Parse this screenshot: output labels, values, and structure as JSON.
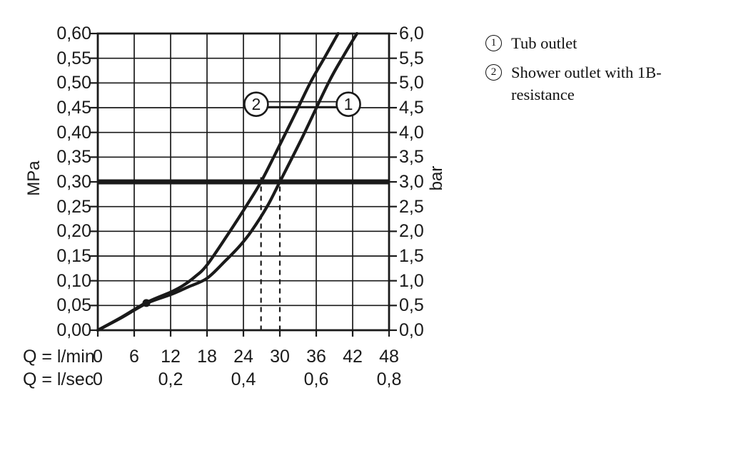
{
  "colors": {
    "ink": "#1a1a1a",
    "background": "#ffffff"
  },
  "chart_data": {
    "type": "line",
    "grid": true,
    "x_axis": {
      "xlim": [
        0,
        48
      ],
      "gridline_step_lmin": 6,
      "row_lmin": {
        "label": "Q = l/min",
        "ticks": [
          "0",
          "6",
          "12",
          "18",
          "24",
          "30",
          "36",
          "42",
          "48"
        ],
        "values": [
          0,
          6,
          12,
          18,
          24,
          30,
          36,
          42,
          48
        ]
      },
      "row_lsec": {
        "label": "Q = l/sec",
        "ticks": [
          "0",
          "0,2",
          "0,4",
          "0,6",
          "0,8"
        ],
        "positions_lmin": [
          0,
          12,
          24,
          36,
          48
        ]
      }
    },
    "y_axis_left": {
      "label": "MPa",
      "ylim": [
        0,
        0.6
      ],
      "step": 0.05,
      "ticks": [
        "0,60",
        "0,55",
        "0,50",
        "0,45",
        "0,40",
        "0,35",
        "0,30",
        "0,25",
        "0,20",
        "0,15",
        "0,10",
        "0,05",
        "0,00"
      ]
    },
    "y_axis_right": {
      "label": "bar",
      "ylim": [
        0,
        6
      ],
      "step": 0.5,
      "ticks": [
        "6,0",
        "5,5",
        "5,0",
        "4,5",
        "4,0",
        "3,5",
        "3,0",
        "2,5",
        "2,0",
        "1,5",
        "1,0",
        "0,5",
        "0,0"
      ]
    },
    "series": [
      {
        "id": "1",
        "name": "Tub outlet",
        "points_lmin_mpa": [
          [
            0,
            0
          ],
          [
            4,
            0.026
          ],
          [
            8,
            0.054
          ],
          [
            12,
            0.072
          ],
          [
            15,
            0.088
          ],
          [
            18,
            0.105
          ],
          [
            21,
            0.14
          ],
          [
            23.5,
            0.172
          ],
          [
            25.3,
            0.2
          ],
          [
            27.9,
            0.25
          ],
          [
            30,
            0.3
          ],
          [
            33.5,
            0.385
          ],
          [
            38,
            0.5
          ],
          [
            40.5,
            0.555
          ],
          [
            42.7,
            0.6
          ]
        ]
      },
      {
        "id": "2",
        "name": "Shower outlet with 1B-resistance",
        "points_lmin_mpa": [
          [
            0,
            0
          ],
          [
            4,
            0.027
          ],
          [
            8,
            0.056
          ],
          [
            12,
            0.077
          ],
          [
            14,
            0.09
          ],
          [
            16,
            0.108
          ],
          [
            18,
            0.132
          ],
          [
            21.5,
            0.195
          ],
          [
            24.4,
            0.25
          ],
          [
            26.9,
            0.3
          ],
          [
            30,
            0.375
          ],
          [
            32.5,
            0.437
          ],
          [
            35,
            0.5
          ],
          [
            37.4,
            0.552
          ],
          [
            39.6,
            0.6
          ]
        ]
      }
    ],
    "pressure_marker": {
      "mpa": 0.3,
      "bar": 3.0
    },
    "dashed_guides_lmin": [
      26.9,
      30
    ],
    "measure_dot": {
      "lmin": 8,
      "mpa": 0.055
    },
    "curve_labels": [
      {
        "text": "2",
        "lmin": 26.1,
        "mpa": 0.457
      },
      {
        "text": "1",
        "lmin": 41.3,
        "mpa": 0.457
      }
    ]
  },
  "legend": {
    "items": [
      {
        "symbol": "1",
        "label": "Tub outlet"
      },
      {
        "symbol": "2",
        "label": "Shower outlet with 1B-\nresistance"
      }
    ]
  }
}
